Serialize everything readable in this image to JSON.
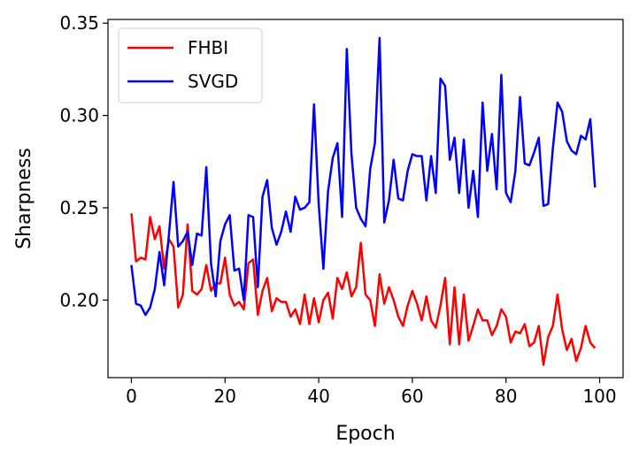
{
  "chart_data": {
    "type": "line",
    "title": "",
    "xlabel": "Epoch",
    "ylabel": "Sharpness",
    "xlim": [
      -5,
      105
    ],
    "ylim": [
      0.158,
      0.352
    ],
    "xticks": [
      0,
      20,
      40,
      60,
      80,
      100
    ],
    "xtick_labels": [
      "0",
      "20",
      "40",
      "60",
      "80",
      "100"
    ],
    "yticks": [
      0.2,
      0.25,
      0.3,
      0.35
    ],
    "ytick_labels": [
      "0.20",
      "0.25",
      "0.30",
      "0.35"
    ],
    "grid": false,
    "legend_position": "top-left",
    "x": [
      0,
      1,
      2,
      3,
      4,
      5,
      6,
      7,
      8,
      9,
      10,
      11,
      12,
      13,
      14,
      15,
      16,
      17,
      18,
      19,
      20,
      21,
      22,
      23,
      24,
      25,
      26,
      27,
      28,
      29,
      30,
      31,
      32,
      33,
      34,
      35,
      36,
      37,
      38,
      39,
      40,
      41,
      42,
      43,
      44,
      45,
      46,
      47,
      48,
      49,
      50,
      51,
      52,
      53,
      54,
      55,
      56,
      57,
      58,
      59,
      60,
      61,
      62,
      63,
      64,
      65,
      66,
      67,
      68,
      69,
      70,
      71,
      72,
      73,
      74,
      75,
      76,
      77,
      78,
      79,
      80,
      81,
      82,
      83,
      84,
      85,
      86,
      87,
      88,
      89,
      90,
      91,
      92,
      93,
      94,
      95,
      96,
      97,
      98,
      99
    ],
    "series": [
      {
        "name": "FHBI",
        "color": "#ff0000",
        "values": [
          0.247,
          0.221,
          0.223,
          0.222,
          0.245,
          0.233,
          0.24,
          0.217,
          0.233,
          0.229,
          0.196,
          0.203,
          0.241,
          0.205,
          0.203,
          0.206,
          0.219,
          0.205,
          0.209,
          0.209,
          0.223,
          0.203,
          0.197,
          0.199,
          0.195,
          0.22,
          0.222,
          0.192,
          0.205,
          0.212,
          0.194,
          0.201,
          0.199,
          0.199,
          0.191,
          0.195,
          0.187,
          0.203,
          0.187,
          0.201,
          0.188,
          0.2,
          0.204,
          0.19,
          0.212,
          0.206,
          0.215,
          0.202,
          0.207,
          0.231,
          0.203,
          0.2,
          0.186,
          0.214,
          0.198,
          0.207,
          0.2,
          0.191,
          0.186,
          0.197,
          0.205,
          0.198,
          0.189,
          0.202,
          0.189,
          0.185,
          0.197,
          0.212,
          0.176,
          0.207,
          0.176,
          0.203,
          0.178,
          0.186,
          0.195,
          0.189,
          0.189,
          0.181,
          0.186,
          0.195,
          0.191,
          0.177,
          0.183,
          0.182,
          0.187,
          0.175,
          0.177,
          0.186,
          0.165,
          0.18,
          0.186,
          0.203,
          0.184,
          0.173,
          0.179,
          0.167,
          0.174,
          0.186,
          0.177,
          0.174
        ]
      },
      {
        "name": "SVGD",
        "color": "#0000ff",
        "values": [
          0.219,
          0.198,
          0.197,
          0.192,
          0.196,
          0.206,
          0.226,
          0.208,
          0.235,
          0.264,
          0.229,
          0.232,
          0.237,
          0.219,
          0.236,
          0.235,
          0.272,
          0.22,
          0.202,
          0.232,
          0.241,
          0.246,
          0.216,
          0.217,
          0.2,
          0.246,
          0.245,
          0.207,
          0.256,
          0.265,
          0.239,
          0.23,
          0.237,
          0.248,
          0.237,
          0.256,
          0.249,
          0.25,
          0.253,
          0.306,
          0.252,
          0.217,
          0.259,
          0.277,
          0.285,
          0.245,
          0.336,
          0.279,
          0.25,
          0.244,
          0.24,
          0.271,
          0.285,
          0.342,
          0.242,
          0.254,
          0.276,
          0.255,
          0.254,
          0.27,
          0.279,
          0.278,
          0.278,
          0.254,
          0.278,
          0.258,
          0.32,
          0.316,
          0.276,
          0.288,
          0.258,
          0.287,
          0.25,
          0.27,
          0.245,
          0.307,
          0.27,
          0.29,
          0.26,
          0.322,
          0.258,
          0.253,
          0.27,
          0.31,
          0.274,
          0.273,
          0.28,
          0.288,
          0.251,
          0.252,
          0.282,
          0.307,
          0.302,
          0.286,
          0.281,
          0.279,
          0.289,
          0.287,
          0.298,
          0.261
        ]
      }
    ]
  }
}
